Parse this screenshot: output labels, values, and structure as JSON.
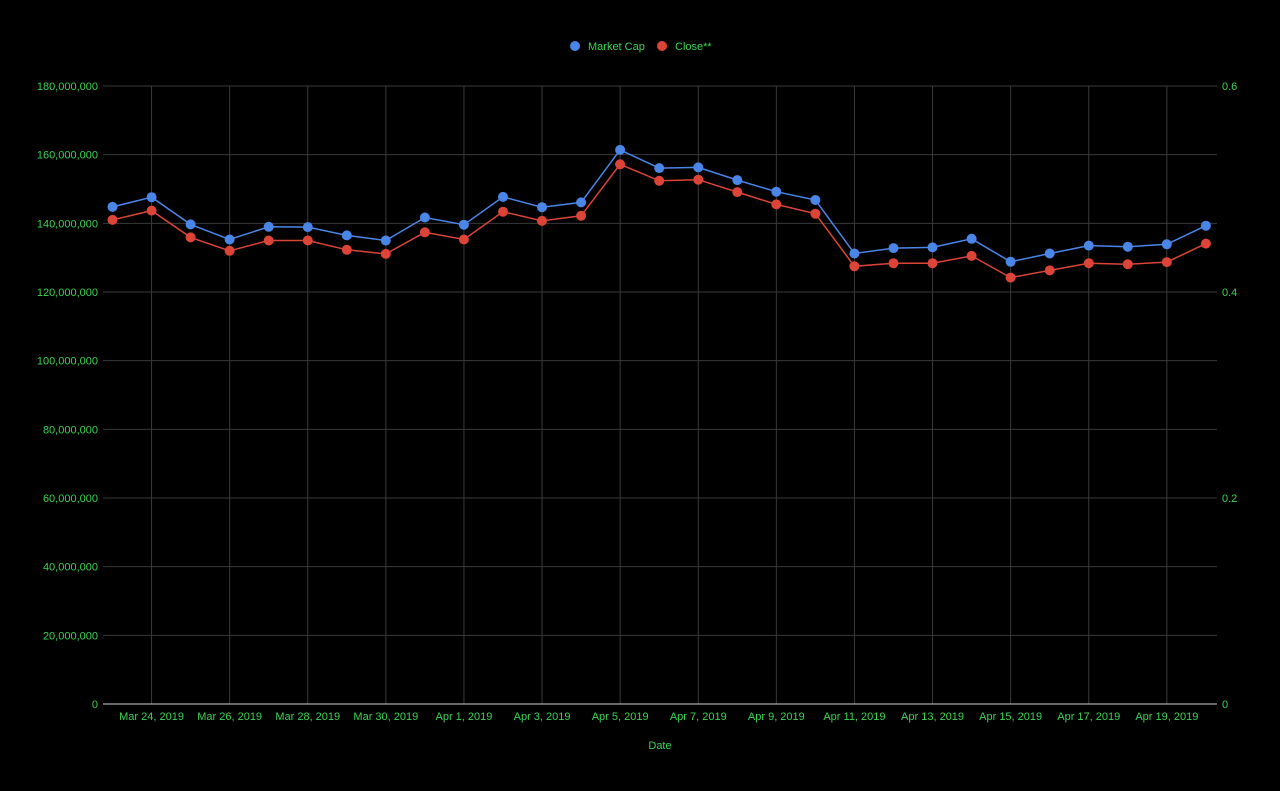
{
  "colors": {
    "background": "#000000",
    "text": "#39d353",
    "grid": "#3a3a3a",
    "baseline": "#cfcfcf",
    "market_cap": "#4a86e8",
    "close": "#db4437"
  },
  "chart_data": {
    "type": "line",
    "title": "",
    "xlabel": "Date",
    "ylabel": "",
    "y2label": "",
    "legend_position": "top",
    "grid": true,
    "x": [
      "Mar 23, 2019",
      "Mar 24, 2019",
      "Mar 25, 2019",
      "Mar 26, 2019",
      "Mar 27, 2019",
      "Mar 28, 2019",
      "Mar 29, 2019",
      "Mar 30, 2019",
      "Mar 31, 2019",
      "Apr 1, 2019",
      "Apr 2, 2019",
      "Apr 3, 2019",
      "Apr 4, 2019",
      "Apr 5, 2019",
      "Apr 6, 2019",
      "Apr 7, 2019",
      "Apr 8, 2019",
      "Apr 9, 2019",
      "Apr 10, 2019",
      "Apr 11, 2019",
      "Apr 12, 2019",
      "Apr 13, 2019",
      "Apr 14, 2019",
      "Apr 15, 2019",
      "Apr 16, 2019",
      "Apr 17, 2019",
      "Apr 18, 2019",
      "Apr 19, 2019",
      "Apr 20, 2019"
    ],
    "x_tick_labels": [
      "Mar 24, 2019",
      "Mar 26, 2019",
      "Mar 28, 2019",
      "Mar 30, 2019",
      "Apr 1, 2019",
      "Apr 3, 2019",
      "Apr 5, 2019",
      "Apr 7, 2019",
      "Apr 9, 2019",
      "Apr 11, 2019",
      "Apr 13, 2019",
      "Apr 15, 2019",
      "Apr 17, 2019",
      "Apr 19, 2019"
    ],
    "y_left": {
      "min": 0,
      "max": 180000000,
      "ticks": [
        "0",
        "20,000,000",
        "40,000,000",
        "60,000,000",
        "80,000,000",
        "100,000,000",
        "120,000,000",
        "140,000,000",
        "160,000,000",
        "180,000,000"
      ]
    },
    "y_right": {
      "min": 0,
      "max": 0.6,
      "ticks": [
        "0",
        "0.2",
        "0.4",
        "0.6"
      ]
    },
    "series": [
      {
        "name": "Market Cap",
        "axis": "left",
        "color": "#4a86e8",
        "values": [
          144800000,
          147600000,
          139700000,
          135300000,
          139000000,
          138900000,
          136500000,
          135000000,
          141700000,
          139600000,
          147700000,
          144700000,
          146100000,
          161400000,
          156100000,
          156300000,
          152600000,
          149200000,
          146800000,
          131200000,
          132800000,
          133000000,
          135500000,
          128800000,
          131200000,
          133500000,
          133200000,
          133900000,
          139300000
        ]
      },
      {
        "name": "Close**",
        "axis": "right",
        "color": "#db4437",
        "values": [
          0.47,
          0.479,
          0.453,
          0.44,
          0.45,
          0.45,
          0.441,
          0.437,
          0.458,
          0.451,
          0.478,
          0.469,
          0.474,
          0.524,
          0.508,
          0.509,
          0.497,
          0.485,
          0.476,
          0.425,
          0.428,
          0.428,
          0.435,
          0.414,
          0.421,
          0.428,
          0.427,
          0.429,
          0.447
        ]
      }
    ]
  }
}
